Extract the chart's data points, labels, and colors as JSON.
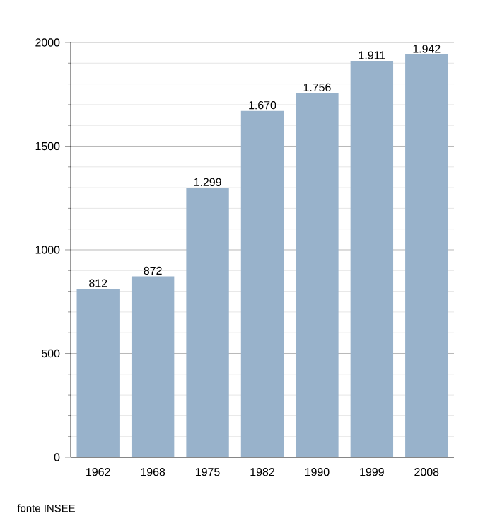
{
  "chart_data": {
    "type": "bar",
    "categories": [
      "1962",
      "1968",
      "1975",
      "1982",
      "1990",
      "1999",
      "2008"
    ],
    "values": [
      812,
      872,
      1299,
      1670,
      1756,
      1911,
      1942
    ],
    "value_labels": [
      "812",
      "872",
      "1.299",
      "1.670",
      "1.756",
      "1.911",
      "1.942"
    ],
    "color": "#98b2cb",
    "ylim": [
      0,
      2000
    ],
    "yticks": [
      0,
      500,
      1000,
      1500,
      2000
    ],
    "grid": "y",
    "annotations": [
      "fonte INSEE"
    ]
  }
}
